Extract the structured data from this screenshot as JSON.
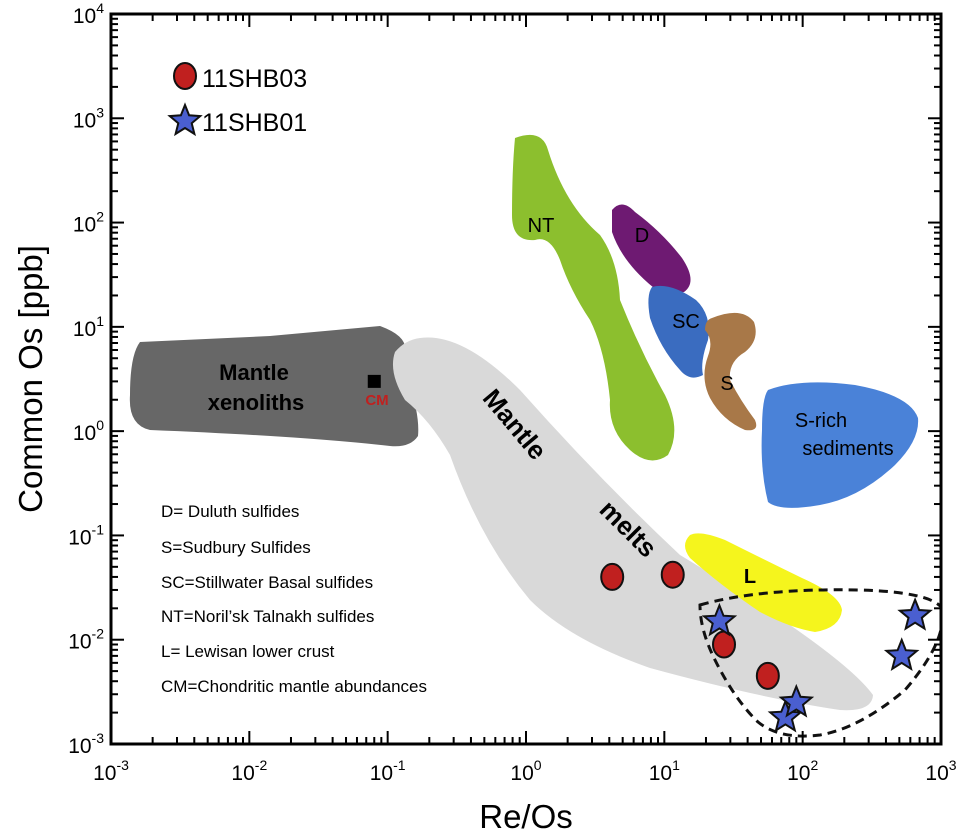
{
  "chart_data": {
    "type": "scatter",
    "xscale": "log",
    "yscale": "log",
    "xlabel": "Re/Os",
    "ylabel": "Common Os [ppb]",
    "xlim": [
      0.001,
      1000
    ],
    "ylim": [
      0.001,
      10000
    ],
    "x_ticks": [
      {
        "v": 0.001,
        "base": "10",
        "exp": "-3"
      },
      {
        "v": 0.01,
        "base": "10",
        "exp": "-2"
      },
      {
        "v": 0.1,
        "base": "10",
        "exp": "-1"
      },
      {
        "v": 1,
        "base": "10",
        "exp": "0"
      },
      {
        "v": 10,
        "base": "10",
        "exp": "1"
      },
      {
        "v": 100,
        "base": "10",
        "exp": "2"
      },
      {
        "v": 1000,
        "base": "10",
        "exp": "3"
      }
    ],
    "y_ticks": [
      {
        "v": 0.001,
        "base": "10",
        "exp": "-3"
      },
      {
        "v": 0.01,
        "base": "10",
        "exp": "-2"
      },
      {
        "v": 0.1,
        "base": "10",
        "exp": "-1"
      },
      {
        "v": 1,
        "base": "10",
        "exp": "0"
      },
      {
        "v": 10,
        "base": "10",
        "exp": "1"
      },
      {
        "v": 100,
        "base": "10",
        "exp": "2"
      },
      {
        "v": 1000,
        "base": "10",
        "exp": "3"
      },
      {
        "v": 10000,
        "base": "10",
        "exp": "4"
      }
    ],
    "series": [
      {
        "name": "11SHB03",
        "marker": "circle",
        "color": "#c0201f",
        "points": [
          {
            "x": 4.2,
            "y": 0.04
          },
          {
            "x": 11.5,
            "y": 0.042
          },
          {
            "x": 27,
            "y": 0.009
          },
          {
            "x": 56,
            "y": 0.0045
          }
        ]
      },
      {
        "name": "11SHB01",
        "marker": "star",
        "color": "#4a5fd0",
        "points": [
          {
            "x": 25,
            "y": 0.015
          },
          {
            "x": 75,
            "y": 0.0018
          },
          {
            "x": 90,
            "y": 0.0025
          },
          {
            "x": 520,
            "y": 0.007
          },
          {
            "x": 650,
            "y": 0.017
          }
        ]
      }
    ],
    "fields": [
      {
        "key": "mantle_xenoliths",
        "label": "Mantle xenoliths",
        "color": "#676767"
      },
      {
        "key": "mantle_melts",
        "label": "Mantle melts",
        "color": "#d9d9d9"
      },
      {
        "key": "nt",
        "label": "NT",
        "color": "#8cbf2e"
      },
      {
        "key": "d",
        "label": "D",
        "color": "#6e1a72"
      },
      {
        "key": "sc",
        "label": "SC",
        "color": "#3a6cc0"
      },
      {
        "key": "s",
        "label": "S",
        "color": "#a87848"
      },
      {
        "key": "s_rich",
        "label": "S-rich sediments",
        "color": "#4a82d8"
      },
      {
        "key": "l",
        "label": "L",
        "color": "#f5f51d"
      }
    ],
    "field_labels": {
      "mantle_xenoliths_1": "Mantle",
      "mantle_xenoliths_2": "xenoliths",
      "cm": "CM",
      "mantle_melts_1": "Mantle",
      "mantle_melts_2": "melts",
      "nt": "NT",
      "d": "D",
      "sc": "SC",
      "s": "S",
      "s_rich_1": "S-rich",
      "s_rich_2": "sediments",
      "l": "L"
    },
    "cm_point": {
      "x": 0.08,
      "y": 3
    },
    "notes": [
      "D= Duluth sulfides",
      "S=Sudbury Sulfides",
      "SC=Stillwater Basal sulfides",
      "NT=Noril’sk Talnakh sulfides",
      "L= Lewisan lower crust",
      "CM=Chondritic mantle abundances"
    ],
    "legend_position": "top-left"
  }
}
